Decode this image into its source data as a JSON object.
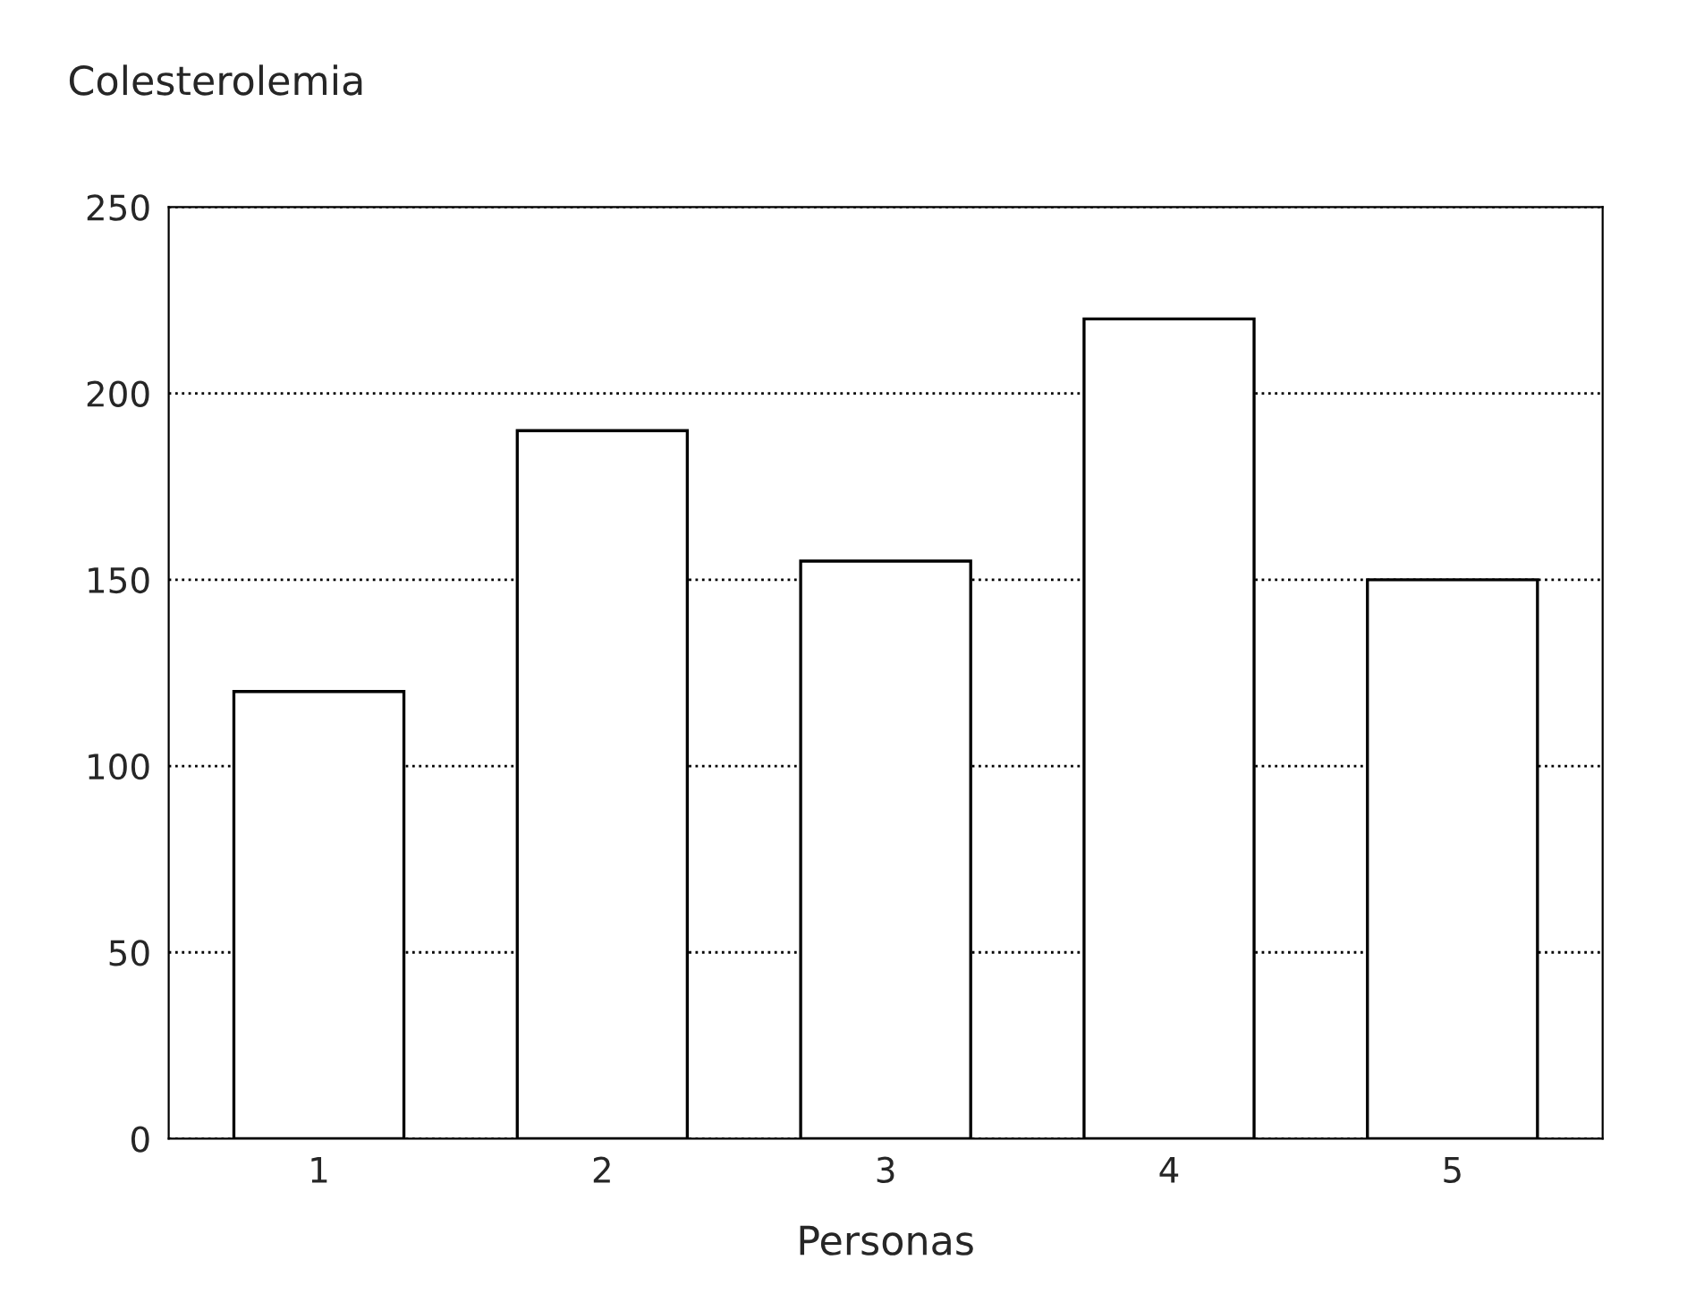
{
  "chart_data": {
    "type": "bar",
    "title": "Colesterolemia",
    "xlabel": "Personas",
    "categories": [
      "1",
      "2",
      "3",
      "4",
      "5"
    ],
    "values": [
      120,
      190,
      155,
      220,
      150
    ],
    "color": "#ffffff",
    "ylim": [
      0,
      250
    ],
    "yticks": [
      0,
      50,
      100,
      150,
      200,
      250
    ],
    "grid": "y"
  }
}
